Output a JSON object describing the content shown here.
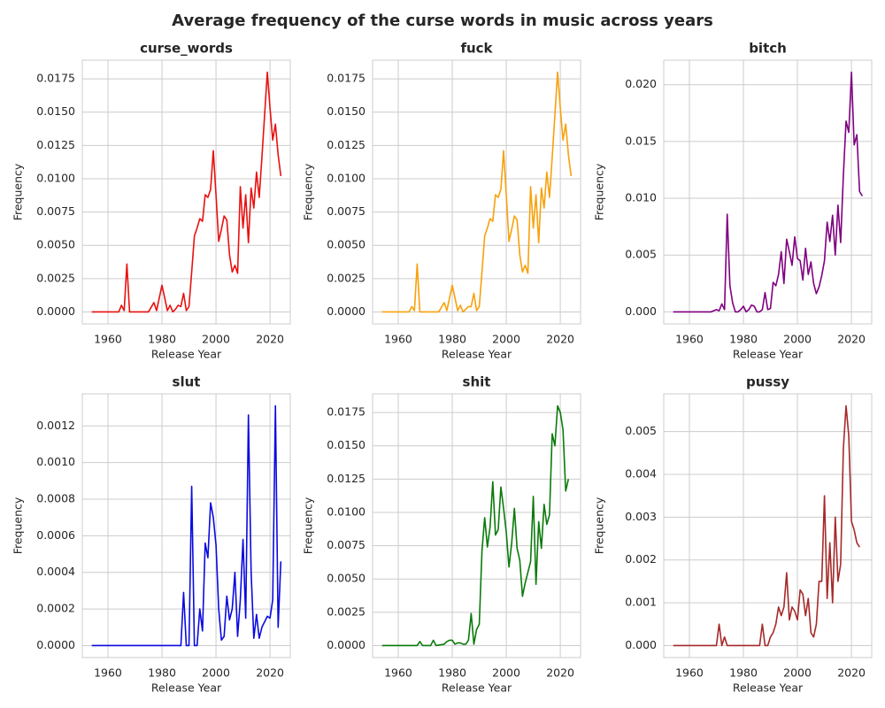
{
  "title": "Average frequency of the curse words in music across years",
  "chart_data": [
    {
      "type": "line",
      "title": "curse_words",
      "xlabel": "Release Year",
      "ylabel": "Frequency",
      "color": "#e8110f",
      "grid": true,
      "x": [
        1954,
        1960,
        1964,
        1965,
        1966,
        1967,
        1968,
        1970,
        1975,
        1977,
        1978,
        1980,
        1982,
        1983,
        1984,
        1985,
        1986,
        1987,
        1988,
        1989,
        1990,
        1991,
        1992,
        1993,
        1994,
        1995,
        1996,
        1997,
        1998,
        1999,
        2000,
        2001,
        2002,
        2003,
        2004,
        2005,
        2006,
        2007,
        2008,
        2009,
        2010,
        2011,
        2012,
        2013,
        2014,
        2015,
        2016,
        2017,
        2018,
        2019,
        2020,
        2021,
        2022,
        2023,
        2024
      ],
      "values": [
        0,
        0,
        0,
        0.0005,
        0.0001,
        0.0036,
        0,
        0,
        0,
        0.0007,
        0.0001,
        0.002,
        0.0001,
        0.0005,
        0,
        0.0002,
        0.0005,
        0.0004,
        0.0014,
        0.0001,
        0.0004,
        0.003,
        0.0057,
        0.0063,
        0.007,
        0.0068,
        0.0088,
        0.0086,
        0.0092,
        0.0121,
        0.0088,
        0.0053,
        0.0062,
        0.0072,
        0.0069,
        0.0043,
        0.003,
        0.0035,
        0.0029,
        0.0094,
        0.0063,
        0.0088,
        0.0052,
        0.0093,
        0.0078,
        0.0105,
        0.0086,
        0.0116,
        0.0148,
        0.018,
        0.0153,
        0.0129,
        0.0141,
        0.0118,
        0.0102
      ],
      "xlim": [
        1950.5,
        2027.5
      ],
      "ylim": [
        -0.0009,
        0.0189
      ],
      "xticks": [
        1960,
        1980,
        2000,
        2020
      ],
      "yticks": [
        {
          "value": 0,
          "label": "0.0000"
        },
        {
          "value": 0.0025,
          "label": "0.0025"
        },
        {
          "value": 0.005,
          "label": "0.0050"
        },
        {
          "value": 0.0075,
          "label": "0.0075"
        },
        {
          "value": 0.01,
          "label": "0.0100"
        },
        {
          "value": 0.0125,
          "label": "0.0125"
        },
        {
          "value": 0.015,
          "label": "0.0150"
        },
        {
          "value": 0.0175,
          "label": "0.0175"
        }
      ]
    },
    {
      "type": "line",
      "title": "fuck",
      "xlabel": "Release Year",
      "ylabel": "Frequency",
      "color": "#f8a10b",
      "grid": true,
      "x": [
        1954,
        1960,
        1964,
        1965,
        1966,
        1967,
        1968,
        1970,
        1975,
        1977,
        1978,
        1980,
        1982,
        1983,
        1984,
        1985,
        1986,
        1987,
        1988,
        1989,
        1990,
        1991,
        1992,
        1993,
        1994,
        1995,
        1996,
        1997,
        1998,
        1999,
        2000,
        2001,
        2002,
        2003,
        2004,
        2005,
        2006,
        2007,
        2008,
        2009,
        2010,
        2011,
        2012,
        2013,
        2014,
        2015,
        2016,
        2017,
        2018,
        2019,
        2020,
        2021,
        2022,
        2023,
        2024
      ],
      "values": [
        0,
        0,
        0,
        0.0004,
        0.0001,
        0.0036,
        0,
        0,
        0,
        0.0007,
        0.0001,
        0.002,
        0.0001,
        0.0005,
        0,
        0.0002,
        0.0004,
        0.0004,
        0.0014,
        0.0001,
        0.0004,
        0.003,
        0.0057,
        0.0063,
        0.007,
        0.0068,
        0.0088,
        0.0086,
        0.0092,
        0.0121,
        0.0088,
        0.0053,
        0.0062,
        0.0072,
        0.0069,
        0.0043,
        0.003,
        0.0035,
        0.0029,
        0.0094,
        0.0063,
        0.0088,
        0.0052,
        0.0093,
        0.0078,
        0.0105,
        0.0086,
        0.0116,
        0.0148,
        0.018,
        0.0153,
        0.0129,
        0.0141,
        0.0118,
        0.0102
      ],
      "xlim": [
        1950.5,
        2027.5
      ],
      "ylim": [
        -0.0009,
        0.0189
      ],
      "xticks": [
        1960,
        1980,
        2000,
        2020
      ],
      "yticks": [
        {
          "value": 0,
          "label": "0.0000"
        },
        {
          "value": 0.0025,
          "label": "0.0025"
        },
        {
          "value": 0.005,
          "label": "0.0050"
        },
        {
          "value": 0.0075,
          "label": "0.0075"
        },
        {
          "value": 0.01,
          "label": "0.0100"
        },
        {
          "value": 0.0125,
          "label": "0.0125"
        },
        {
          "value": 0.015,
          "label": "0.0150"
        },
        {
          "value": 0.0175,
          "label": "0.0175"
        }
      ]
    },
    {
      "type": "line",
      "title": "bitch",
      "xlabel": "Release Year",
      "ylabel": "Frequency",
      "color": "#800080",
      "grid": true,
      "x": [
        1954,
        1968,
        1970,
        1971,
        1972,
        1973,
        1974,
        1975,
        1976,
        1977,
        1978,
        1979,
        1980,
        1981,
        1982,
        1983,
        1984,
        1985,
        1986,
        1987,
        1988,
        1989,
        1990,
        1991,
        1992,
        1993,
        1994,
        1995,
        1996,
        1997,
        1998,
        1999,
        2000,
        2001,
        2002,
        2003,
        2004,
        2005,
        2006,
        2007,
        2008,
        2009,
        2010,
        2011,
        2012,
        2013,
        2014,
        2015,
        2016,
        2017,
        2018,
        2019,
        2020,
        2021,
        2022,
        2023,
        2024
      ],
      "values": [
        0,
        0,
        0.0002,
        0.0001,
        0.0007,
        0.0002,
        0.0086,
        0.0023,
        0.0008,
        0,
        0,
        0.0002,
        0.0005,
        0,
        0.0002,
        0.0006,
        0.0005,
        0,
        0,
        0.0002,
        0.0017,
        0.0002,
        0.0003,
        0.0026,
        0.0023,
        0.0033,
        0.0053,
        0.0025,
        0.0064,
        0.0053,
        0.0041,
        0.0066,
        0.0047,
        0.0045,
        0.0028,
        0.0056,
        0.0033,
        0.0044,
        0.0025,
        0.0016,
        0.0022,
        0.0032,
        0.0045,
        0.0079,
        0.0062,
        0.0085,
        0.005,
        0.0094,
        0.0061,
        0.012,
        0.0168,
        0.0158,
        0.0211,
        0.0147,
        0.0156,
        0.0106,
        0.0102
      ],
      "xlim": [
        1950.5,
        2027.5
      ],
      "ylim": [
        -0.00106,
        0.02216
      ],
      "xticks": [
        1960,
        1980,
        2000,
        2020
      ],
      "yticks": [
        {
          "value": 0,
          "label": "0.000"
        },
        {
          "value": 0.005,
          "label": "0.005"
        },
        {
          "value": 0.01,
          "label": "0.010"
        },
        {
          "value": 0.015,
          "label": "0.015"
        },
        {
          "value": 0.02,
          "label": "0.020"
        }
      ]
    },
    {
      "type": "line",
      "title": "slut",
      "xlabel": "Release Year",
      "ylabel": "Frequency",
      "color": "#0a0adf",
      "grid": true,
      "x": [
        1954,
        1987,
        1988,
        1989,
        1990,
        1991,
        1992,
        1993,
        1994,
        1995,
        1996,
        1997,
        1998,
        1999,
        2000,
        2001,
        2002,
        2003,
        2004,
        2005,
        2006,
        2007,
        2008,
        2009,
        2010,
        2011,
        2012,
        2013,
        2014,
        2015,
        2016,
        2017,
        2018,
        2019,
        2020,
        2021,
        2022,
        2023,
        2024
      ],
      "values": [
        0,
        0,
        0.00029,
        0,
        0,
        0.00087,
        0,
        0,
        0.0002,
        8e-05,
        0.00056,
        0.00048,
        0.00078,
        0.0007,
        0.00055,
        0.0002,
        3e-05,
        5e-05,
        0.00027,
        0.00014,
        0.0002,
        0.0004,
        5e-05,
        0.00025,
        0.00058,
        0.00015,
        0.00126,
        0.0004,
        4e-05,
        0.00017,
        4e-05,
        0.0001,
        0.00013,
        0.00016,
        0.00015,
        0.00025,
        0.00131,
        0.0001,
        0.00046
      ],
      "xlim": [
        1950.5,
        2027.5
      ],
      "ylim": [
        -6.55e-05,
        0.0013755
      ],
      "xticks": [
        1960,
        1980,
        2000,
        2020
      ],
      "yticks": [
        {
          "value": 0,
          "label": "0.0000"
        },
        {
          "value": 0.0002,
          "label": "0.0002"
        },
        {
          "value": 0.0004,
          "label": "0.0004"
        },
        {
          "value": 0.0006,
          "label": "0.0006"
        },
        {
          "value": 0.0008,
          "label": "0.0008"
        },
        {
          "value": 0.001,
          "label": "0.0010"
        },
        {
          "value": 0.0012,
          "label": "0.0012"
        }
      ]
    },
    {
      "type": "line",
      "title": "shit",
      "xlabel": "Release Year",
      "ylabel": "Frequency",
      "color": "#0a7a0a",
      "grid": true,
      "x": [
        1954,
        1967,
        1968,
        1969,
        1972,
        1973,
        1974,
        1977,
        1978,
        1979,
        1980,
        1981,
        1982,
        1983,
        1984,
        1985,
        1986,
        1987,
        1988,
        1989,
        1990,
        1991,
        1992,
        1993,
        1994,
        1995,
        1996,
        1997,
        1998,
        1999,
        2000,
        2001,
        2002,
        2003,
        2004,
        2005,
        2006,
        2007,
        2008,
        2009,
        2010,
        2011,
        2012,
        2013,
        2014,
        2015,
        2016,
        2017,
        2018,
        2019,
        2020,
        2021,
        2022,
        2023
      ],
      "values": [
        0,
        0,
        0.0003,
        0,
        0,
        0.0004,
        0,
        0.0001,
        0.0003,
        0.0004,
        0.0004,
        0.0001,
        0.0002,
        0.0002,
        0.0001,
        0.0001,
        0.0004,
        0.0024,
        0.0001,
        0.0012,
        0.0016,
        0.0071,
        0.0096,
        0.0074,
        0.0089,
        0.0123,
        0.0083,
        0.0087,
        0.0119,
        0.0103,
        0.0085,
        0.0059,
        0.0077,
        0.0103,
        0.0073,
        0.0064,
        0.0037,
        0.0047,
        0.0055,
        0.0063,
        0.0112,
        0.0046,
        0.0093,
        0.0073,
        0.0106,
        0.0091,
        0.0098,
        0.0159,
        0.015,
        0.018,
        0.0175,
        0.0162,
        0.0116,
        0.0125
      ],
      "xlim": [
        1950.5,
        2027.5
      ],
      "ylim": [
        -0.0009,
        0.0189
      ],
      "xticks": [
        1960,
        1980,
        2000,
        2020
      ],
      "yticks": [
        {
          "value": 0,
          "label": "0.0000"
        },
        {
          "value": 0.0025,
          "label": "0.0025"
        },
        {
          "value": 0.005,
          "label": "0.0050"
        },
        {
          "value": 0.0075,
          "label": "0.0075"
        },
        {
          "value": 0.01,
          "label": "0.0100"
        },
        {
          "value": 0.0125,
          "label": "0.0125"
        },
        {
          "value": 0.015,
          "label": "0.0150"
        },
        {
          "value": 0.0175,
          "label": "0.0175"
        }
      ]
    },
    {
      "type": "line",
      "title": "pussy",
      "xlabel": "Release Year",
      "ylabel": "Frequency",
      "color": "#a52a2a",
      "grid": true,
      "x": [
        1954,
        1970,
        1971,
        1972,
        1973,
        1974,
        1986,
        1987,
        1988,
        1989,
        1990,
        1991,
        1992,
        1993,
        1994,
        1995,
        1996,
        1997,
        1998,
        1999,
        2000,
        2001,
        2002,
        2003,
        2004,
        2005,
        2006,
        2007,
        2008,
        2009,
        2010,
        2011,
        2012,
        2013,
        2014,
        2015,
        2016,
        2017,
        2018,
        2019,
        2020,
        2021,
        2022,
        2023
      ],
      "values": [
        0,
        0,
        0.0005,
        0,
        0.0002,
        0,
        0,
        0.0005,
        0,
        0,
        0.0002,
        0.0003,
        0.0005,
        0.0009,
        0.0007,
        0.0009,
        0.0017,
        0.0006,
        0.0009,
        0.0008,
        0.0006,
        0.0013,
        0.0012,
        0.0007,
        0.0011,
        0.0003,
        0.0002,
        0.0005,
        0.0015,
        0.0015,
        0.0035,
        0.0011,
        0.0024,
        0.001,
        0.003,
        0.0015,
        0.0019,
        0.0046,
        0.0056,
        0.0049,
        0.0029,
        0.0027,
        0.0024,
        0.0023
      ],
      "xlim": [
        1950.5,
        2027.5
      ],
      "ylim": [
        -0.00028,
        0.00588
      ],
      "xticks": [
        1960,
        1980,
        2000,
        2020
      ],
      "yticks": [
        {
          "value": 0,
          "label": "0.000"
        },
        {
          "value": 0.001,
          "label": "0.001"
        },
        {
          "value": 0.002,
          "label": "0.002"
        },
        {
          "value": 0.003,
          "label": "0.003"
        },
        {
          "value": 0.004,
          "label": "0.004"
        },
        {
          "value": 0.005,
          "label": "0.005"
        }
      ]
    }
  ]
}
